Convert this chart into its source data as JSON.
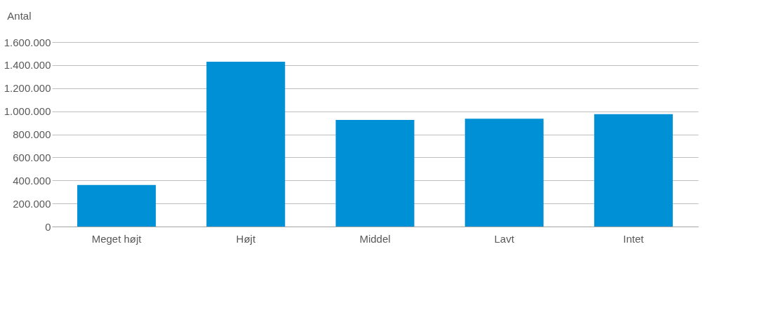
{
  "chart_data": {
    "type": "bar",
    "ylabel": "Antal",
    "categories": [
      "Meget højt",
      "Højt",
      "Middel",
      "Lavt",
      "Intet"
    ],
    "values": [
      360000,
      1430000,
      925000,
      935000,
      975000
    ],
    "color": "#0090d6",
    "ylim": [
      0,
      1600000
    ],
    "yticks": [
      {
        "value": 0,
        "label": "0"
      },
      {
        "value": 200000,
        "label": "200.000"
      },
      {
        "value": 400000,
        "label": "400.000"
      },
      {
        "value": 600000,
        "label": "600.000"
      },
      {
        "value": 800000,
        "label": "800.000"
      },
      {
        "value": 1000000,
        "label": "1.000.000"
      },
      {
        "value": 1200000,
        "label": "1.200.000"
      },
      {
        "value": 1400000,
        "label": "1.400.000"
      },
      {
        "value": 1600000,
        "label": "1.600.000"
      }
    ],
    "grid": "y",
    "legend": false
  }
}
